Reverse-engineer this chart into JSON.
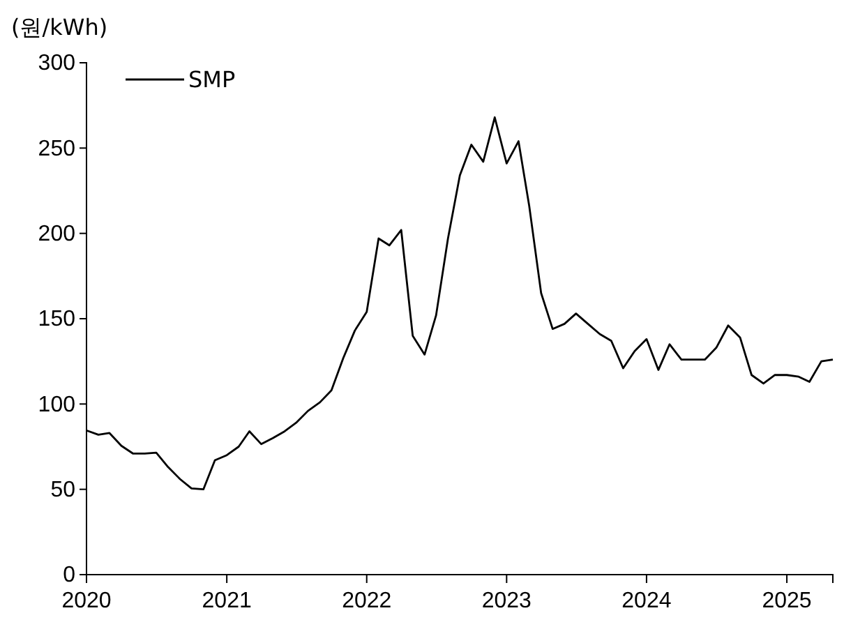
{
  "chart_data": {
    "type": "line",
    "ylabel": "(원/kWh)",
    "x": [
      "2020-01",
      "2020-02",
      "2020-03",
      "2020-04",
      "2020-05",
      "2020-06",
      "2020-07",
      "2020-08",
      "2020-09",
      "2020-10",
      "2020-11",
      "2020-12",
      "2021-01",
      "2021-02",
      "2021-03",
      "2021-04",
      "2021-05",
      "2021-06",
      "2021-07",
      "2021-08",
      "2021-09",
      "2021-10",
      "2021-11",
      "2021-12",
      "2022-01",
      "2022-02",
      "2022-03",
      "2022-04",
      "2022-05",
      "2022-06",
      "2022-07",
      "2022-08",
      "2022-09",
      "2022-10",
      "2022-11",
      "2022-12",
      "2023-01",
      "2023-02",
      "2023-03",
      "2023-04",
      "2023-05",
      "2023-06",
      "2023-07",
      "2023-08",
      "2023-09",
      "2023-10",
      "2023-11",
      "2023-12",
      "2024-01",
      "2024-02",
      "2024-03",
      "2024-04",
      "2024-05",
      "2024-06",
      "2024-07",
      "2024-08",
      "2024-09",
      "2024-10",
      "2024-11",
      "2024-12",
      "2025-01",
      "2025-02",
      "2025-03",
      "2025-04",
      "2025-05"
    ],
    "series": [
      {
        "name": "SMP",
        "color": "#000000",
        "values": [
          84.5,
          82,
          83,
          75.5,
          71,
          71,
          71.5,
          63,
          56,
          50.5,
          50,
          67,
          70,
          75,
          84,
          76.5,
          80,
          84,
          89,
          96,
          101,
          108,
          127,
          143,
          154,
          197,
          193,
          202,
          140,
          129,
          152,
          197,
          234,
          252,
          242,
          268,
          241,
          254,
          216,
          165,
          144,
          147,
          153,
          147,
          141,
          137,
          121,
          131,
          138,
          120,
          135,
          126,
          126,
          126,
          133,
          146,
          139,
          117,
          112,
          117,
          117,
          116,
          113,
          125,
          126
        ]
      }
    ],
    "xlim": [
      "2020-01",
      "2025-05"
    ],
    "xticks": [
      "2020",
      "2021",
      "2022",
      "2023",
      "2024",
      "2025"
    ],
    "ylim": [
      0,
      300
    ],
    "yticks": [
      0,
      50,
      100,
      150,
      200,
      250,
      300
    ],
    "legend": "top left",
    "grid": false,
    "marker": "none",
    "line_style": "solid"
  }
}
